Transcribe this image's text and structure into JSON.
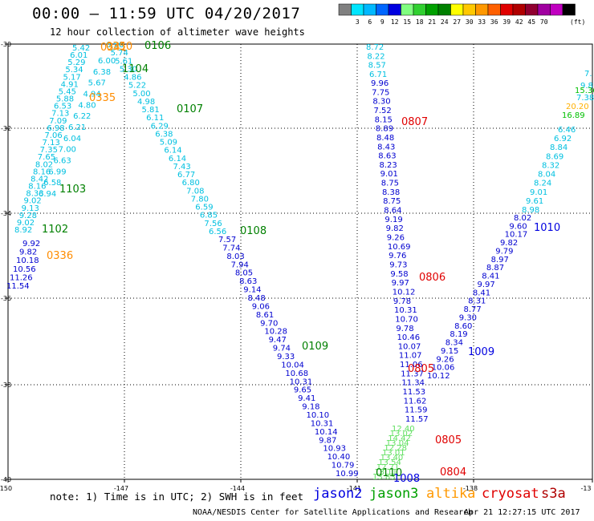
{
  "header": {
    "title": "00:00 – 11:59 UTC 04/20/2017",
    "subtitle": "12 hour collection of altimeter wave heights"
  },
  "scale": {
    "colors": [
      "#808080",
      "#00e5ff",
      "#00b8ff",
      "#0066ff",
      "#0000e0",
      "#80ff80",
      "#30d030",
      "#00a000",
      "#008000",
      "#ffff00",
      "#ffc800",
      "#ff9800",
      "#ff6000",
      "#e00000",
      "#b00000",
      "#900030",
      "#a000a0",
      "#c000c0",
      "#000000"
    ],
    "labels": [
      "3",
      "6",
      "9",
      "12",
      "15",
      "18",
      "21",
      "24",
      "27",
      "30",
      "33",
      "36",
      "39",
      "42",
      "45",
      "70"
    ],
    "unit": "(ft)"
  },
  "map": {
    "x_labels": [
      "-150",
      "-147",
      "-144",
      "-141",
      "-138",
      "-13"
    ],
    "y_labels": [
      "-30",
      "-32",
      "-34",
      "-36",
      "-38",
      "-40"
    ]
  },
  "times": [
    {
      "t": "0350",
      "c": "#ff8c00"
    },
    {
      "t": "0341",
      "c": "#ff8c00"
    },
    {
      "t": "0335",
      "c": "#ff8c00"
    },
    {
      "t": "0336",
      "c": "#ff8c00"
    },
    {
      "t": "0106",
      "c": "#008000"
    },
    {
      "t": "1104",
      "c": "#008000"
    },
    {
      "t": "0107",
      "c": "#008000"
    },
    {
      "t": "1103",
      "c": "#008000"
    },
    {
      "t": "1102",
      "c": "#008000"
    },
    {
      "t": "0108",
      "c": "#008000"
    },
    {
      "t": "0109",
      "c": "#008000"
    },
    {
      "t": "0110",
      "c": "#008000"
    },
    {
      "t": "0807",
      "c": "#e00000"
    },
    {
      "t": "0806",
      "c": "#e00000"
    },
    {
      "t": "0805",
      "c": "#e00000"
    },
    {
      "t": "0805",
      "c": "#e00000"
    },
    {
      "t": "0804",
      "c": "#e00000"
    },
    {
      "t": "1009",
      "c": "#0000e0"
    },
    {
      "t": "1010",
      "c": "#0000e0"
    },
    {
      "t": "1008",
      "c": "#0000e0"
    }
  ],
  "tracks": {
    "jason3_a": {
      "color": "#00c0e0",
      "values": [
        "5.42",
        "6.01",
        "5.29",
        "5.34",
        "5.17",
        "4.91",
        "5.45",
        "5.88",
        "6.53",
        "7.13",
        "7.09",
        "6.98",
        "7.06",
        "7.13",
        "7.35",
        "7.65",
        "8.02",
        "8.16",
        "8.42",
        "8.16",
        "8.33",
        "9.02",
        "9.13",
        "9.28",
        "9.02",
        "8.92"
      ]
    },
    "jason3_a2": {
      "color": "#00c0e0",
      "values": [
        "6.00",
        "6.38",
        "5.67",
        "4.94",
        "4.80",
        "6.22",
        "6.21",
        "6.04",
        "7.00",
        "6.63",
        "6.99",
        "6.58",
        "6.94"
      ]
    },
    "altika_a": {
      "color": "#0000d0",
      "values": [
        "9.92",
        "9.82",
        "10.18",
        "10.56",
        "11.26",
        "11.54"
      ]
    },
    "jason2_b_top": {
      "color": "#00c0e0",
      "values": [
        "6.50",
        "5.74",
        "5.61",
        "5.30",
        "4.86",
        "5.22",
        "5.00",
        "4.98",
        "5.81",
        "6.11",
        "6.29",
        "6.38",
        "5.09",
        "6.14",
        "6.14",
        "7.43",
        "6.77",
        "6.80",
        "7.08",
        "7.80",
        "6.59",
        "6.85",
        "7.56",
        "6.56"
      ]
    },
    "jason2_b_bot": {
      "color": "#0000d0",
      "values": [
        "7.57",
        "7.74",
        "8.03",
        "7.94",
        "8.05",
        "8.63",
        "9.14",
        "8.48",
        "9.06",
        "8.61",
        "9.70",
        "10.28",
        "9.47",
        "9.74",
        "9.33",
        "10.04",
        "10.68",
        "10.31",
        "9.65",
        "9.41",
        "9.18",
        "10.10",
        "10.31",
        "10.14",
        "9.87",
        "10.93",
        "10.40",
        "10.79",
        "10.99"
      ]
    },
    "cryo_c_top": {
      "color": "#00c0e0",
      "values": [
        "8.72",
        "8.22",
        "8.57",
        "6.71"
      ]
    },
    "cryo_c_bot": {
      "color": "#0000d0",
      "values": [
        "9.96",
        "7.75",
        "8.30",
        "7.52",
        "8.15",
        "8.89",
        "8.48",
        "8.43",
        "8.63",
        "8.23",
        "9.01",
        "8.75",
        "8.38",
        "8.75",
        "8.64",
        "9.19",
        "9.82",
        "9.26",
        "10.69",
        "9.76",
        "9.73",
        "9.58",
        "9.97",
        "10.12",
        "9.78",
        "10.31",
        "10.70",
        "9.78",
        "10.46",
        "10.07",
        "11.07",
        "11.06",
        "11.37",
        "11.34",
        "11.53",
        "11.62",
        "11.59",
        "11.57"
      ]
    },
    "green_c": {
      "color": "#60e060",
      "values": [
        "12.40",
        "13.02",
        "14.42",
        "13.04",
        "12.28",
        "13.01",
        "13.40",
        "13.54",
        "12.71",
        "13.11",
        "13.83"
      ]
    },
    "jason2_d": {
      "color": "#0000d0",
      "values": [
        "10.12",
        "10.06",
        "9.26",
        "9.15",
        "8.34",
        "8.19",
        "8.60",
        "9.30",
        "8.77",
        "8.31",
        "8.41",
        "9.97",
        "8.41",
        "8.87",
        "8.97",
        "9.79",
        "9.82",
        "10.17",
        "9.60",
        "8.02"
      ]
    },
    "jason2_d_top": {
      "color": "#00c0e0",
      "values": [
        "8.98",
        "9.61",
        "9.01",
        "8.24",
        "8.04",
        "8.32",
        "8.69",
        "8.84",
        "6.92",
        "6.46"
      ]
    },
    "edge": {
      "color": "#00c0e0",
      "values": [
        "7.",
        "9.8",
        "7.38"
      ]
    },
    "edge_green": {
      "color": "#00c000",
      "values": [
        "15.36",
        "16.89"
      ]
    },
    "edge_orange": {
      "color": "#ffb000",
      "values": [
        "20.20"
      ]
    }
  },
  "legend": {
    "note": "note: 1) Time is in UTC; 2) SWH is in feet",
    "satellites": [
      {
        "name": "jason2",
        "color": "#0000e0"
      },
      {
        "name": "jason3",
        "color": "#00a000"
      },
      {
        "name": "altika",
        "color": "#ff9800"
      },
      {
        "name": "cryosat",
        "color": "#e00000"
      },
      {
        "name": "s3a",
        "color": "#b00000"
      }
    ]
  },
  "footer": {
    "left": "NOAA/NESDIS Center for Satellite Applications and Research",
    "right": "Apr 21 12:27:15 UTC 2017"
  }
}
